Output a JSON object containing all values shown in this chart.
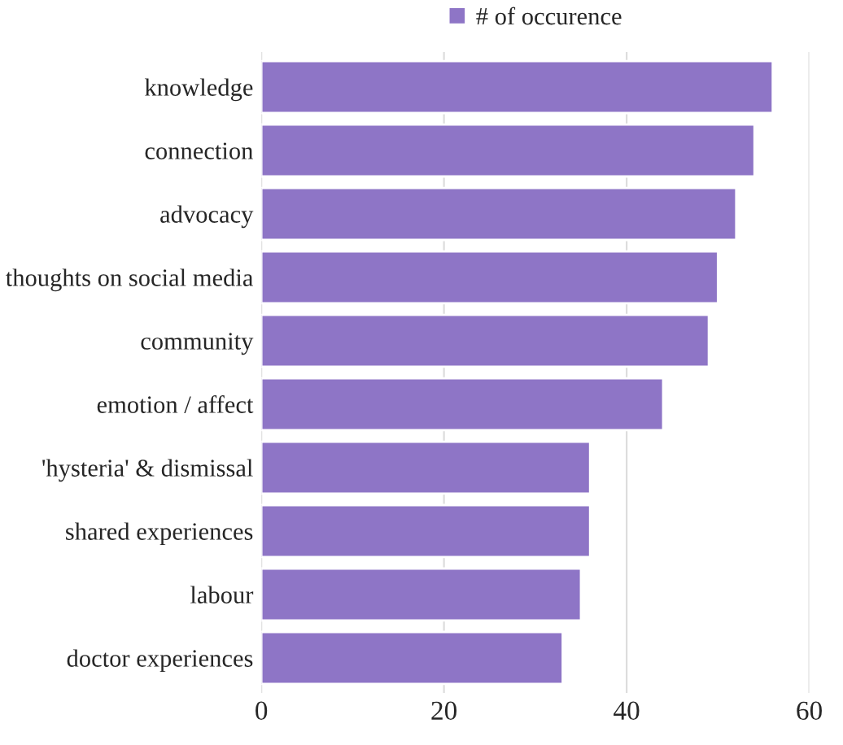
{
  "chart_data": {
    "type": "bar",
    "orientation": "horizontal",
    "categories": [
      "knowledge",
      "connection",
      "advocacy",
      "thoughts on social media",
      "community",
      "emotion / affect",
      "'hysteria' & dismissal",
      "shared experiences",
      "labour",
      "doctor experiences"
    ],
    "series": [
      {
        "name": "# of occurence",
        "color": "#8e75c6",
        "values": [
          56,
          54,
          52,
          50,
          49,
          44,
          36,
          36,
          35,
          33
        ]
      }
    ],
    "xlim": [
      0,
      60
    ],
    "xticks": [
      0,
      20,
      40,
      60
    ],
    "grid": "x",
    "legend": "top"
  }
}
